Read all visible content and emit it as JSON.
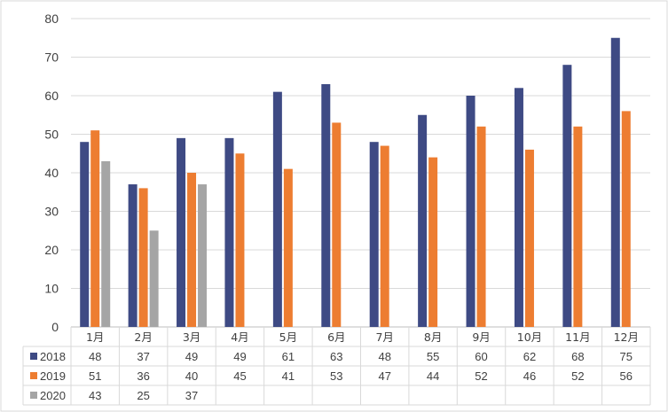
{
  "chart_data": {
    "type": "bar",
    "categories": [
      "1月",
      "2月",
      "3月",
      "4月",
      "5月",
      "6月",
      "7月",
      "8月",
      "9月",
      "10月",
      "11月",
      "12月"
    ],
    "series": [
      {
        "name": "2018",
        "color": "#3e4a84",
        "values": [
          48,
          37,
          49,
          49,
          61,
          63,
          48,
          55,
          60,
          62,
          68,
          75
        ]
      },
      {
        "name": "2019",
        "color": "#ed7d31",
        "values": [
          51,
          36,
          40,
          45,
          41,
          53,
          47,
          44,
          52,
          46,
          52,
          56
        ]
      },
      {
        "name": "2020",
        "color": "#a5a5a5",
        "values": [
          43,
          25,
          37,
          null,
          null,
          null,
          null,
          null,
          null,
          null,
          null,
          null
        ]
      }
    ],
    "ylim": [
      0,
      80
    ],
    "yticks": [
      0,
      10,
      20,
      30,
      40,
      50,
      60,
      70,
      80
    ],
    "grid": true,
    "legend": "data-table",
    "title": "",
    "xlabel": "",
    "ylabel": ""
  }
}
